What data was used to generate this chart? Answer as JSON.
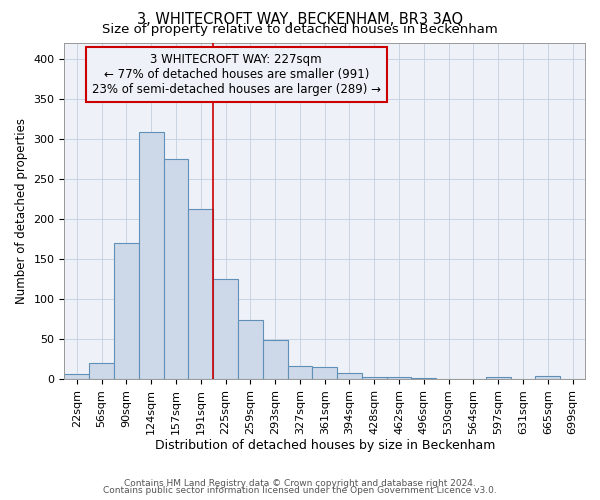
{
  "title": "3, WHITECROFT WAY, BECKENHAM, BR3 3AQ",
  "subtitle": "Size of property relative to detached houses in Beckenham",
  "xlabel": "Distribution of detached houses by size in Beckenham",
  "ylabel": "Number of detached properties",
  "footer_line1": "Contains HM Land Registry data © Crown copyright and database right 2024.",
  "footer_line2": "Contains public sector information licensed under the Open Government Licence v3.0.",
  "categories": [
    "22sqm",
    "56sqm",
    "90sqm",
    "124sqm",
    "157sqm",
    "191sqm",
    "225sqm",
    "259sqm",
    "293sqm",
    "327sqm",
    "361sqm",
    "394sqm",
    "428sqm",
    "462sqm",
    "496sqm",
    "530sqm",
    "564sqm",
    "597sqm",
    "631sqm",
    "665sqm",
    "699sqm"
  ],
  "values": [
    6,
    20,
    170,
    308,
    275,
    212,
    125,
    74,
    49,
    16,
    15,
    8,
    3,
    2,
    1,
    0,
    0,
    3,
    0,
    4
  ],
  "bar_color": "#cdd9e8",
  "bar_edge_color": "#6090b8",
  "grid_color": "#c5cfe0",
  "background_color": "#ffffff",
  "plot_bg_color": "#eef2f8",
  "annotation_line1": "3 WHITECROFT WAY: 227sqm",
  "annotation_line2": "← 77% of detached houses are smaller (991)",
  "annotation_line3": "23% of semi-detached houses are larger (289) →",
  "annotation_box_color": "#cc0000",
  "property_line_index": 6,
  "ylim": [
    0,
    420
  ],
  "yticks": [
    0,
    50,
    100,
    150,
    200,
    250,
    300,
    350,
    400
  ],
  "title_fontsize": 10.5,
  "subtitle_fontsize": 9.5,
  "xlabel_fontsize": 9,
  "ylabel_fontsize": 8.5,
  "tick_fontsize": 8,
  "annotation_fontsize": 8.5,
  "footer_fontsize": 6.5
}
